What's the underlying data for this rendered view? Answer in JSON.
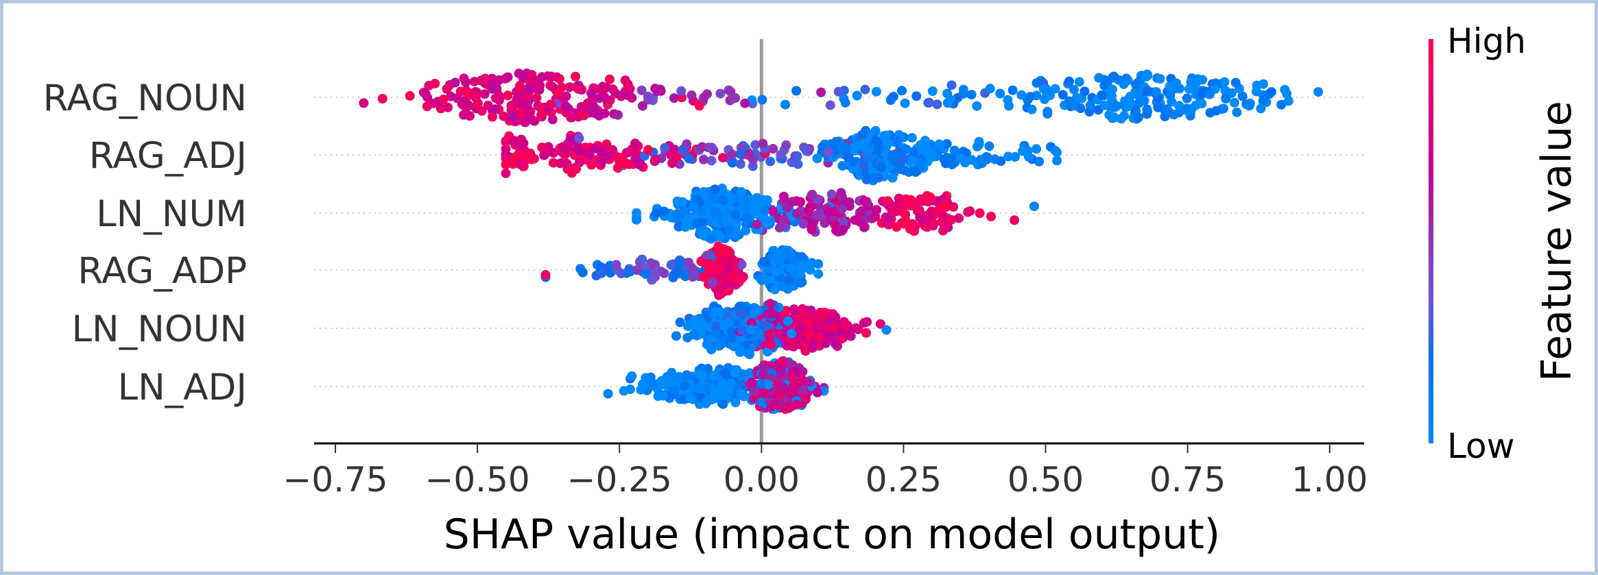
{
  "chart_data": {
    "type": "scatter",
    "subtype": "beeswarm",
    "xlabel": "SHAP value (impact on model output)",
    "xlim": [
      -0.8,
      1.06
    ],
    "xticks": [
      -0.75,
      -0.5,
      -0.25,
      0.0,
      0.25,
      0.5,
      0.75,
      1.0
    ],
    "xtick_labels": [
      "−0.75",
      "−0.50",
      "−0.25",
      "0.00",
      "0.25",
      "0.50",
      "0.75",
      "1.00"
    ],
    "grid": "dotted horizontal per feature",
    "colorbar": {
      "label": "Feature value",
      "high": "High",
      "low": "Low",
      "low_color": "#008bfb",
      "high_color": "#ff0051",
      "placement": "right"
    },
    "features": [
      {
        "name": "RAG_NOUN",
        "min": -0.7,
        "max": 0.98,
        "clusters": [
          {
            "center": -0.4,
            "spread": 0.11,
            "weight": 0.45,
            "feature_value": 0.8
          },
          {
            "center": -0.1,
            "spread": 0.12,
            "weight": 0.06,
            "feature_value": 0.45
          },
          {
            "center": 0.3,
            "spread": 0.15,
            "weight": 0.09,
            "feature_value": 0.15
          },
          {
            "center": 0.7,
            "spread": 0.11,
            "weight": 0.4,
            "feature_value": 0.05
          }
        ]
      },
      {
        "name": "RAG_ADJ",
        "min": -0.45,
        "max": 0.52,
        "clusters": [
          {
            "center": -0.3,
            "spread": 0.09,
            "weight": 0.3,
            "feature_value": 0.85
          },
          {
            "center": -0.02,
            "spread": 0.1,
            "weight": 0.15,
            "feature_value": 0.4
          },
          {
            "center": 0.2,
            "spread": 0.04,
            "weight": 0.4,
            "feature_value": 0.08
          },
          {
            "center": 0.35,
            "spread": 0.08,
            "weight": 0.15,
            "feature_value": 0.05
          }
        ]
      },
      {
        "name": "LN_NUM",
        "min": -0.22,
        "max": 0.48,
        "clusters": [
          {
            "center": -0.07,
            "spread": 0.05,
            "weight": 0.55,
            "feature_value": 0.05
          },
          {
            "center": 0.12,
            "spread": 0.05,
            "weight": 0.25,
            "feature_value": 0.6
          },
          {
            "center": 0.28,
            "spread": 0.05,
            "weight": 0.2,
            "feature_value": 0.9
          }
        ]
      },
      {
        "name": "RAG_ADP",
        "min": -0.38,
        "max": 0.1,
        "clusters": [
          {
            "center": -0.07,
            "spread": 0.015,
            "weight": 0.45,
            "feature_value": 0.92
          },
          {
            "center": 0.04,
            "spread": 0.02,
            "weight": 0.4,
            "feature_value": 0.05
          },
          {
            "center": -0.2,
            "spread": 0.08,
            "weight": 0.15,
            "feature_value": 0.3
          }
        ]
      },
      {
        "name": "LN_NOUN",
        "min": -0.15,
        "max": 0.22,
        "clusters": [
          {
            "center": -0.04,
            "spread": 0.04,
            "weight": 0.5,
            "feature_value": 0.1
          },
          {
            "center": 0.07,
            "spread": 0.05,
            "weight": 0.5,
            "feature_value": 0.8
          }
        ]
      },
      {
        "name": "LN_ADJ",
        "min": -0.27,
        "max": 0.11,
        "clusters": [
          {
            "center": -0.08,
            "spread": 0.07,
            "weight": 0.5,
            "feature_value": 0.05
          },
          {
            "center": 0.035,
            "spread": 0.025,
            "weight": 0.5,
            "feature_value": 0.7
          }
        ]
      }
    ]
  }
}
